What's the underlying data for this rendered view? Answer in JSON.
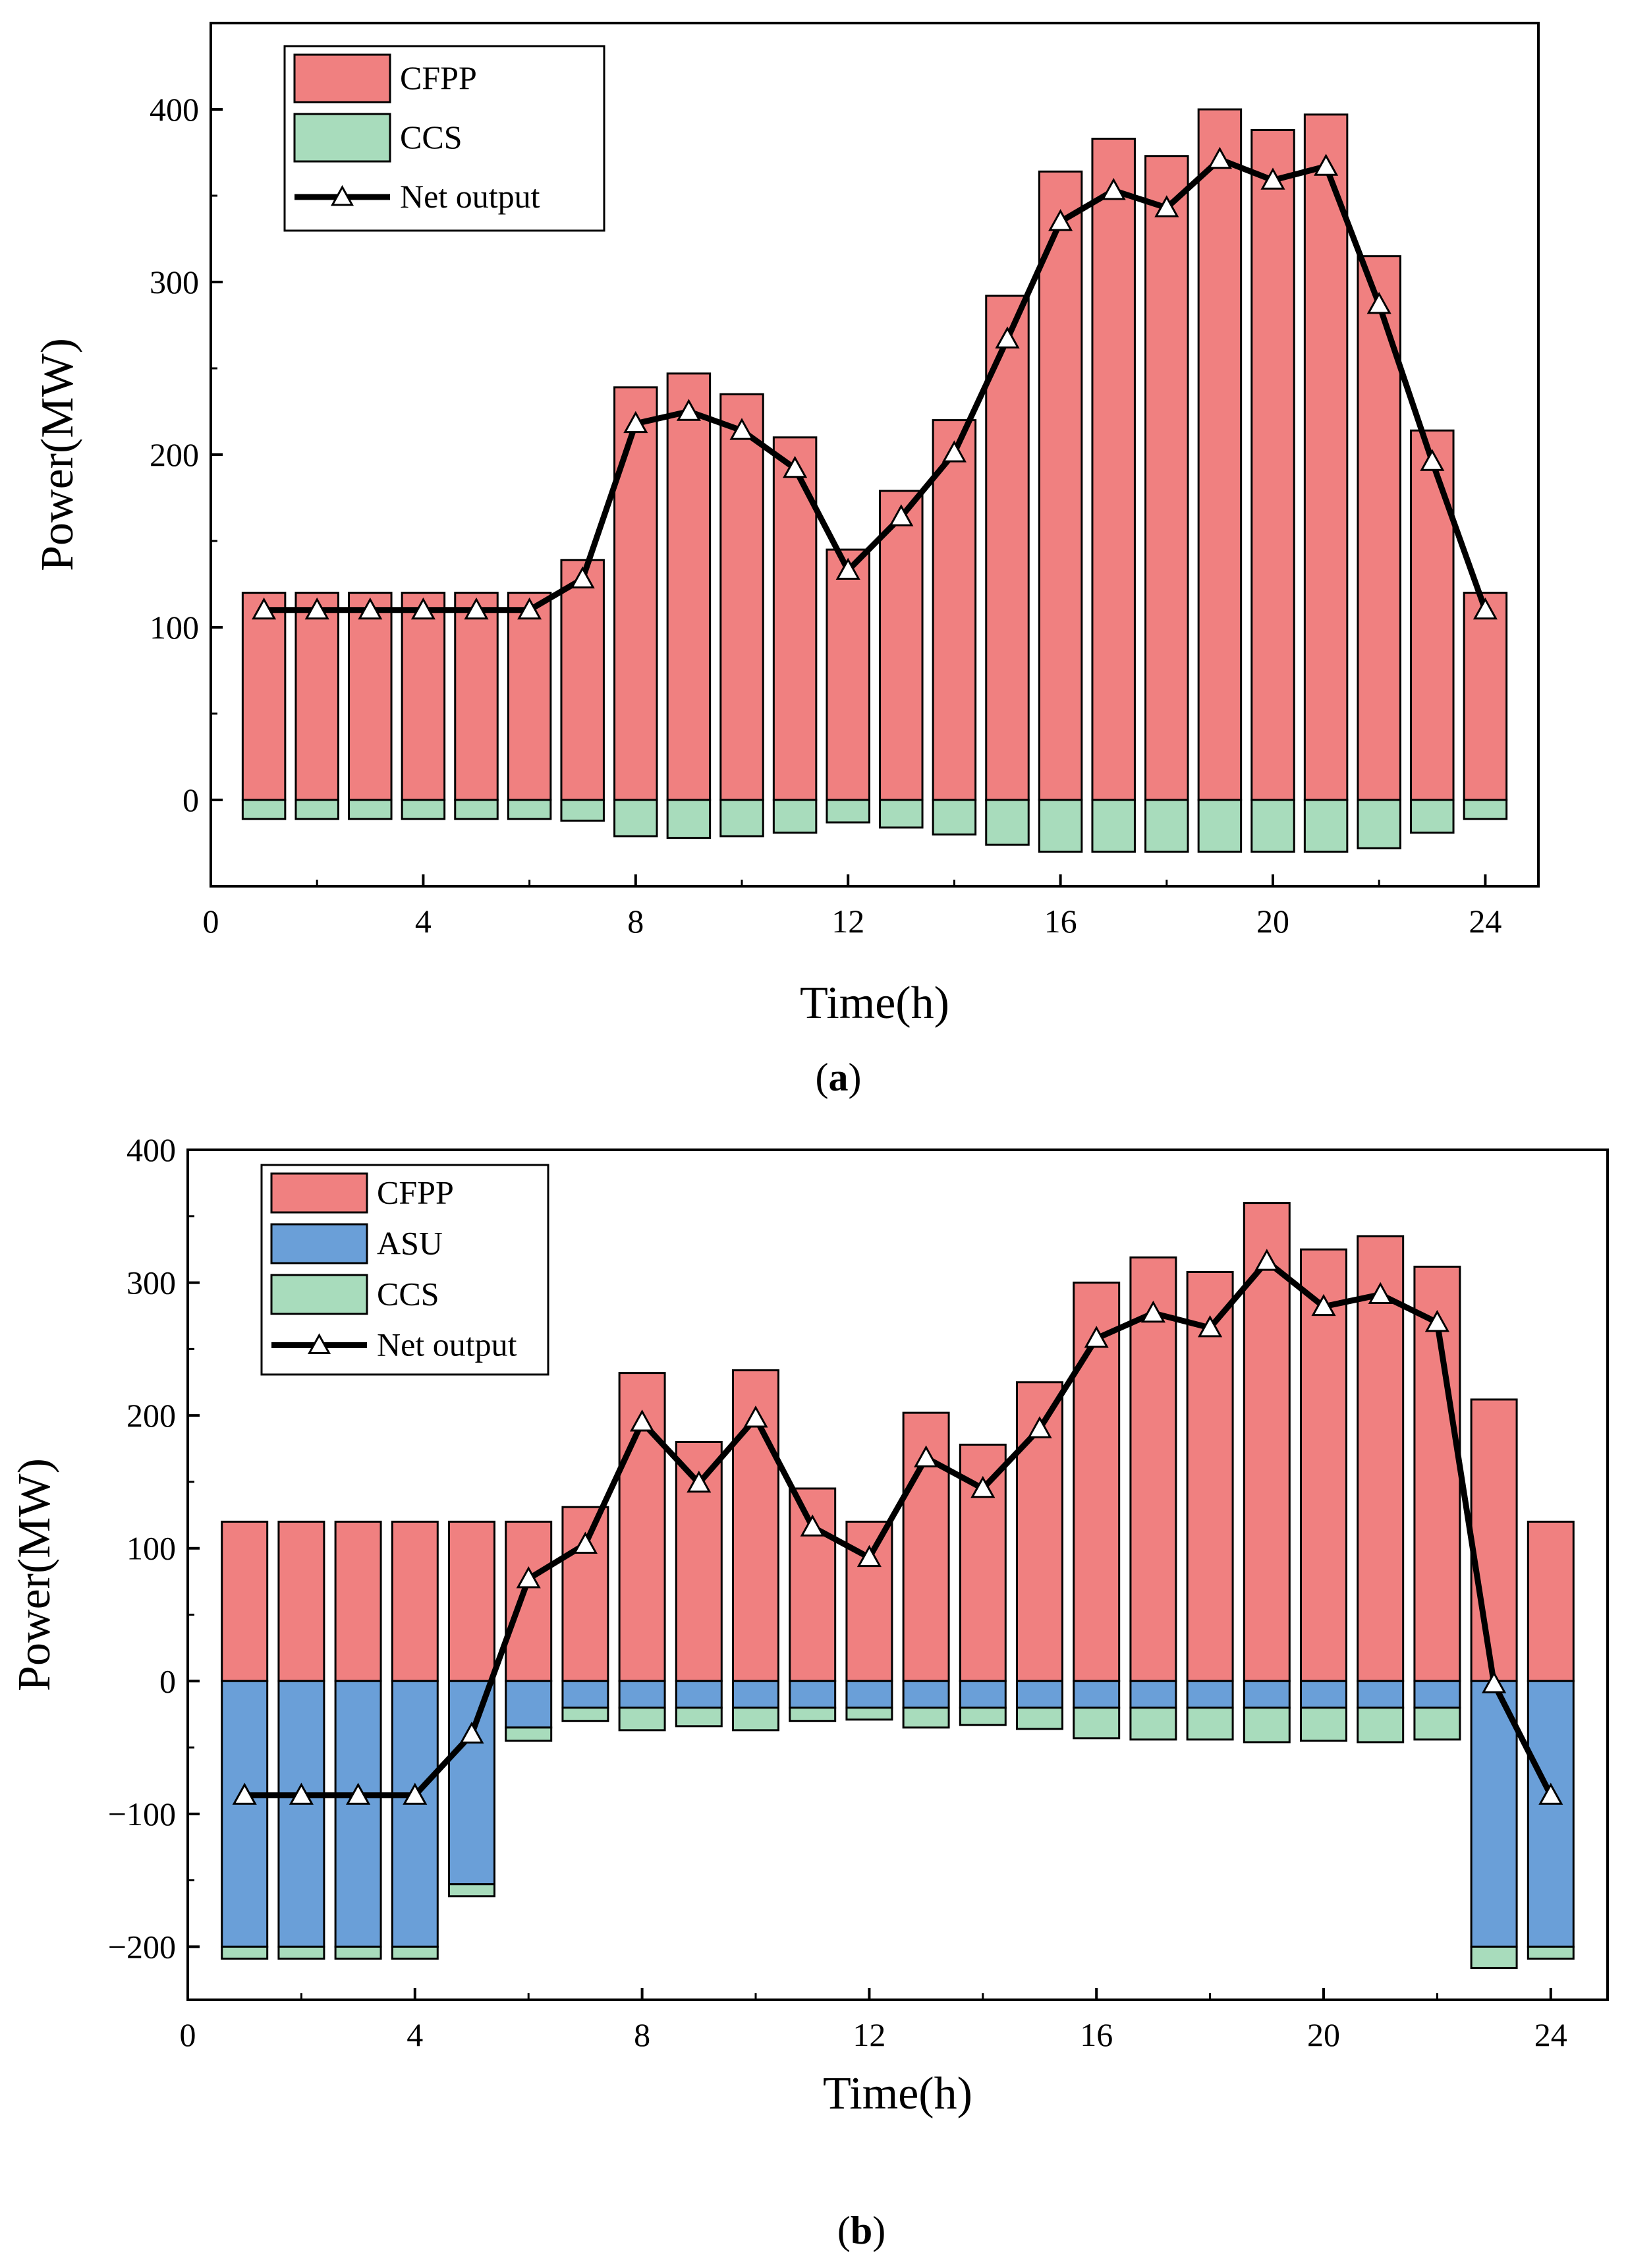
{
  "colors": {
    "cfpp": "#f08080",
    "asu": "#6a9fd8",
    "ccs": "#a8dcbc",
    "net": "#000000"
  },
  "chart_data": [
    {
      "type": "bar",
      "panel_label": "a",
      "xlabel": "Time(h)",
      "ylabel": "Power(MW)",
      "xlim": [
        0,
        25
      ],
      "ylim": [
        -50,
        450
      ],
      "xticks": [
        0,
        4,
        8,
        12,
        16,
        20,
        24
      ],
      "yticks": [
        0,
        100,
        200,
        300,
        400
      ],
      "x": [
        1,
        2,
        3,
        4,
        5,
        6,
        7,
        8,
        9,
        10,
        11,
        12,
        13,
        14,
        15,
        16,
        17,
        18,
        19,
        20,
        21,
        22,
        23,
        24
      ],
      "series": [
        {
          "name": "CFPP",
          "kind": "bar",
          "color_key": "cfpp",
          "values": [
            120,
            120,
            120,
            120,
            120,
            120,
            139,
            239,
            247,
            235,
            210,
            145,
            179,
            220,
            292,
            364,
            383,
            373,
            400,
            388,
            397,
            315,
            214,
            120
          ]
        },
        {
          "name": "CCS",
          "kind": "bar",
          "color_key": "ccs",
          "values": [
            -11,
            -11,
            -11,
            -11,
            -11,
            -11,
            -12,
            -21,
            -22,
            -21,
            -19,
            -13,
            -16,
            -20,
            -26,
            -30,
            -30,
            -30,
            -30,
            -30,
            -30,
            -28,
            -19,
            -11
          ]
        },
        {
          "name": "Net output",
          "kind": "line",
          "color_key": "net",
          "values": [
            110,
            110,
            110,
            110,
            110,
            110,
            128,
            218,
            225,
            214,
            192,
            133,
            164,
            201,
            267,
            335,
            353,
            343,
            371,
            359,
            367,
            287,
            196,
            110
          ]
        }
      ],
      "legend": {
        "position": "top-left",
        "entries": [
          "CFPP",
          "CCS",
          "Net output"
        ]
      }
    },
    {
      "type": "bar",
      "panel_label": "b",
      "xlabel": "Time(h)",
      "ylabel": "Power(MW)",
      "xlim": [
        0,
        25
      ],
      "ylim": [
        -240,
        400
      ],
      "xticks": [
        0,
        4,
        8,
        12,
        16,
        20,
        24
      ],
      "yticks": [
        -200,
        -100,
        0,
        100,
        200,
        300,
        400
      ],
      "ytick_labels": [
        "−200",
        "−100",
        "0",
        "100",
        "200",
        "300",
        "400"
      ],
      "x": [
        1,
        2,
        3,
        4,
        5,
        6,
        7,
        8,
        9,
        10,
        11,
        12,
        13,
        14,
        15,
        16,
        17,
        18,
        19,
        20,
        21,
        22,
        23,
        24
      ],
      "series": [
        {
          "name": "CFPP",
          "kind": "bar",
          "color_key": "cfpp",
          "values": [
            120,
            120,
            120,
            120,
            120,
            120,
            131,
            232,
            180,
            234,
            145,
            120,
            202,
            178,
            225,
            300,
            319,
            308,
            360,
            325,
            335,
            312,
            212,
            120
          ]
        },
        {
          "name": "ASU",
          "kind": "bar",
          "color_key": "asu",
          "values": [
            -200,
            -200,
            -200,
            -200,
            -153,
            -35,
            -20,
            -20,
            -20,
            -20,
            -20,
            -20,
            -20,
            -20,
            -20,
            -20,
            -20,
            -20,
            -20,
            -20,
            -20,
            -20,
            -200,
            -200
          ]
        },
        {
          "name": "CCS",
          "kind": "bar",
          "color_key": "ccs",
          "values": [
            -9,
            -9,
            -9,
            -9,
            -9,
            -10,
            -10,
            -17,
            -14,
            -17,
            -10,
            -9,
            -15,
            -13,
            -16,
            -23,
            -24,
            -24,
            -26,
            -25,
            -26,
            -24,
            -16,
            -9
          ]
        },
        {
          "name": "Net output",
          "kind": "line",
          "color_key": "net",
          "values": [
            -86,
            -86,
            -86,
            -86,
            -40,
            77,
            103,
            195,
            149,
            198,
            116,
            93,
            168,
            145,
            190,
            258,
            277,
            266,
            316,
            282,
            291,
            270,
            -2,
            -86
          ]
        }
      ],
      "legend": {
        "position": "top-left",
        "entries": [
          "CFPP",
          "ASU",
          "CCS",
          "Net output"
        ]
      }
    }
  ]
}
